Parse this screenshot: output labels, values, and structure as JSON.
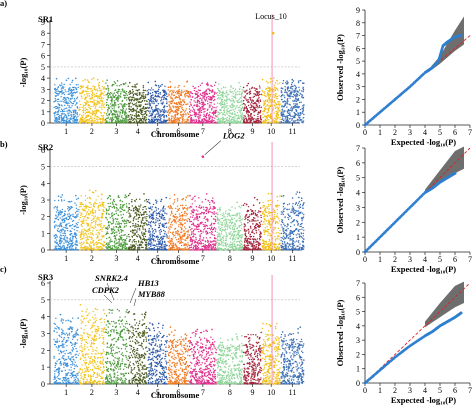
{
  "figure": {
    "panel_letters": [
      "a)",
      "b)",
      "c)"
    ]
  },
  "chart_data": [
    {
      "type": "scatter",
      "kind": "manhattan",
      "panel": "a)",
      "title": "SR1",
      "xlabel": "Chromosome",
      "ylabel": "-log₁₀(P)",
      "ylim": [
        0,
        9
      ],
      "yticks": [
        0,
        1,
        2,
        3,
        4,
        5,
        6,
        7,
        8,
        9
      ],
      "categories": [
        "1",
        "2",
        "3",
        "4",
        "5",
        "6",
        "7",
        "8",
        "9",
        "10",
        "11"
      ],
      "chromosome_colors": [
        "#3a8fd9",
        "#f2c21b",
        "#4d9a3e",
        "#4a5a20",
        "#2b57a8",
        "#f07a22",
        "#e02f8c",
        "#90d69a",
        "#a3243c",
        "#f2bf14",
        "#3b6fb5"
      ],
      "base_heights": [
        3.6,
        3.7,
        3.4,
        3.3,
        3.3,
        3.3,
        3.3,
        3.2,
        3.2,
        3.6,
        3.6
      ],
      "threshold": 5.0,
      "threshold_color": "#bbbbbb",
      "highlight_line_chromosome": "10",
      "annotations": [
        {
          "label": "Locus_10",
          "chromosome": "10",
          "value": 8.0,
          "italic": false
        }
      ]
    },
    {
      "type": "scatter",
      "kind": "qq",
      "panel": "a)",
      "xlabel": "Expected -log₁₀(P)",
      "ylabel": "Observed -log₁₀(P)",
      "xlim": [
        0,
        7
      ],
      "ylim": [
        0,
        9
      ],
      "xticks": [
        0,
        1,
        2,
        3,
        4,
        5,
        6,
        7
      ],
      "yticks": [
        0,
        1,
        2,
        3,
        4,
        5,
        6,
        7,
        8,
        9
      ],
      "observed": [
        [
          0,
          0
        ],
        [
          1,
          1.0
        ],
        [
          2,
          2.0
        ],
        [
          3,
          3.0
        ],
        [
          4,
          4.1
        ],
        [
          4.5,
          4.5
        ],
        [
          4.9,
          5.0
        ],
        [
          5.2,
          6.2
        ],
        [
          5.5,
          6.5
        ],
        [
          6.0,
          6.9
        ],
        [
          6.4,
          7.0
        ]
      ],
      "band_upper": [
        [
          4.2,
          4.3
        ],
        [
          5,
          5.4
        ],
        [
          6,
          7.4
        ],
        [
          6.6,
          8.5
        ]
      ],
      "band_lower": [
        [
          4.2,
          4.1
        ],
        [
          5,
          4.8
        ],
        [
          6,
          5.8
        ],
        [
          6.6,
          6.3
        ]
      ]
    },
    {
      "type": "scatter",
      "kind": "manhattan",
      "panel": "b)",
      "title": "SR2",
      "xlabel": "Chromosome",
      "ylabel": "-log₁₀(P)",
      "ylim": [
        0,
        6
      ],
      "yticks": [
        0,
        1,
        2,
        3,
        4,
        5,
        6
      ],
      "categories": [
        "1",
        "2",
        "3",
        "4",
        "5",
        "6",
        "7",
        "8",
        "9",
        "10",
        "11"
      ],
      "chromosome_colors": [
        "#3a8fd9",
        "#f2c21b",
        "#4d9a3e",
        "#4a5a20",
        "#2b57a8",
        "#f07a22",
        "#e02f8c",
        "#90d69a",
        "#a3243c",
        "#f2bf14",
        "#3b6fb5"
      ],
      "base_heights": [
        2.9,
        3.2,
        3.1,
        3.0,
        2.9,
        3.0,
        3.0,
        2.5,
        2.7,
        3.0,
        3.2
      ],
      "threshold": 5.0,
      "threshold_color": "#bbbbbb",
      "highlight_line_chromosome": "10",
      "annotations": [
        {
          "label": "LOG2",
          "chromosome": "7",
          "value": 5.6,
          "italic": true
        }
      ]
    },
    {
      "type": "scatter",
      "kind": "qq",
      "panel": "b)",
      "xlabel": "Expected -log₁₀(P)",
      "ylabel": "Observed -log₁₀(P)",
      "xlim": [
        0,
        7
      ],
      "ylim": [
        0,
        7
      ],
      "xticks": [
        0,
        1,
        2,
        3,
        4,
        5,
        6,
        7
      ],
      "yticks": [
        0,
        1,
        2,
        3,
        4,
        5,
        6,
        7
      ],
      "observed": [
        [
          0,
          0
        ],
        [
          1,
          1.0
        ],
        [
          2,
          2.0
        ],
        [
          3,
          3.0
        ],
        [
          4,
          4.0
        ],
        [
          4.5,
          4.3
        ],
        [
          5,
          4.7
        ],
        [
          5.5,
          5.0
        ],
        [
          6.0,
          5.3
        ]
      ],
      "band_upper": [
        [
          4,
          4.2
        ],
        [
          5,
          5.5
        ],
        [
          6,
          6.8
        ],
        [
          6.6,
          7.1
        ]
      ],
      "band_lower": [
        [
          4,
          3.9
        ],
        [
          5,
          4.6
        ],
        [
          6,
          5.3
        ],
        [
          6.6,
          5.6
        ]
      ]
    },
    {
      "type": "scatter",
      "kind": "manhattan",
      "panel": "c)",
      "title": "SR3",
      "xlabel": "Chromosome",
      "ylabel": "-log₁₀(P)",
      "ylim": [
        0,
        6
      ],
      "yticks": [
        0,
        1,
        2,
        3,
        4,
        5,
        6
      ],
      "categories": [
        "1",
        "2",
        "3",
        "4",
        "5",
        "6",
        "7",
        "8",
        "9",
        "10",
        "11"
      ],
      "chromosome_colors": [
        "#3a8fd9",
        "#f2c21b",
        "#4d9a3e",
        "#4a5a20",
        "#2b57a8",
        "#f07a22",
        "#e02f8c",
        "#90d69a",
        "#a3243c",
        "#f2bf14",
        "#3b6fb5"
      ],
      "base_heights": [
        3.8,
        4.4,
        4.3,
        4.0,
        3.2,
        3.0,
        3.0,
        2.6,
        2.8,
        3.3,
        3.0
      ],
      "threshold": 5.0,
      "threshold_color": "#bbbbbb",
      "highlight_line_chromosome": "10",
      "annotations": [
        {
          "label": "SNRK2.4",
          "chromosome": "2",
          "value": 5.0,
          "italic": true
        },
        {
          "label": "CDPK2",
          "chromosome": "2",
          "value": 4.9,
          "italic": true
        },
        {
          "label": "HB13",
          "chromosome": "3",
          "value": 4.6,
          "italic": true
        },
        {
          "label": "MYB88",
          "chromosome": "3",
          "value": 4.5,
          "italic": true
        }
      ]
    },
    {
      "type": "scatter",
      "kind": "qq",
      "panel": "c)",
      "xlabel": "Expected -log₁₀(P)",
      "ylabel": "Observed -log₁₀(P)",
      "xlim": [
        0,
        7
      ],
      "ylim": [
        0,
        7
      ],
      "xticks": [
        0,
        1,
        2,
        3,
        4,
        5,
        6,
        7
      ],
      "yticks": [
        0,
        1,
        2,
        3,
        4,
        5,
        6,
        7
      ],
      "observed": [
        [
          0,
          0
        ],
        [
          1,
          0.9
        ],
        [
          2,
          1.8
        ],
        [
          3,
          2.6
        ],
        [
          4,
          3.3
        ],
        [
          4.5,
          3.6
        ],
        [
          5,
          4.0
        ],
        [
          5.5,
          4.3
        ],
        [
          6.0,
          4.6
        ],
        [
          6.4,
          4.9
        ]
      ],
      "band_upper": [
        [
          4,
          4.3
        ],
        [
          5,
          5.6
        ],
        [
          6,
          6.8
        ],
        [
          6.6,
          7.1
        ]
      ],
      "band_lower": [
        [
          4,
          3.9
        ],
        [
          5,
          4.6
        ],
        [
          6,
          5.3
        ],
        [
          6.6,
          5.6
        ]
      ]
    }
  ]
}
